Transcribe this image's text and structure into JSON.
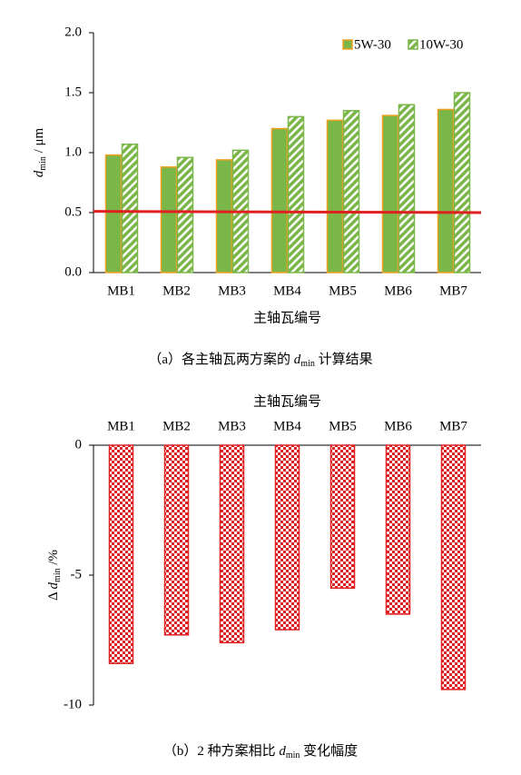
{
  "chart_data": [
    {
      "type": "bar",
      "caption_prefix": "（a）各主轴瓦两方案的 ",
      "caption_symbol": "d",
      "caption_subscript": "min",
      "caption_suffix": " 计算结果",
      "ylabel_symbol": "d",
      "ylabel_subscript": "min",
      "ylabel_unit": " / μm",
      "xlabel": "主轴瓦编号",
      "categories": [
        "MB1",
        "MB2",
        "MB3",
        "MB4",
        "MB5",
        "MB6",
        "MB7"
      ],
      "series": [
        {
          "name": "5W-30",
          "color": "#7ab648",
          "edge_color": "#f0a020",
          "values": [
            0.98,
            0.88,
            0.94,
            1.2,
            1.27,
            1.31,
            1.36
          ]
        },
        {
          "name": "10W-30",
          "color": "#7ab648",
          "edge_color": "#7ab648",
          "hatch": true,
          "values": [
            1.07,
            0.96,
            1.02,
            1.3,
            1.35,
            1.4,
            1.5
          ]
        }
      ],
      "reference_line": {
        "color": "#e02020",
        "values": [
          0.51,
          0.5
        ]
      },
      "ylim": [
        0,
        2
      ],
      "yticks": [
        {
          "value": 0,
          "label": "0.0"
        },
        {
          "value": 0.5,
          "label": "0.5"
        },
        {
          "value": 1,
          "label": "1.0"
        },
        {
          "value": 1.5,
          "label": "1.5"
        },
        {
          "value": 2,
          "label": "2.0"
        }
      ],
      "legend": "top-right"
    },
    {
      "type": "bar-down",
      "caption_prefix": "（b）2 种方案相比 ",
      "caption_symbol": "d",
      "caption_subscript": "min",
      "caption_suffix": " 变化幅度",
      "ylabel_prefix": "Δ ",
      "ylabel_symbol": "d",
      "ylabel_subscript": "min",
      "ylabel_unit": "  /%",
      "xlabel": "主轴瓦编号",
      "categories": [
        "MB1",
        "MB2",
        "MB3",
        "MB4",
        "MB5",
        "MB6",
        "MB7"
      ],
      "values": [
        -8.4,
        -7.3,
        -7.6,
        -7.1,
        -5.5,
        -6.5,
        -9.4
      ],
      "color": "#e02020",
      "ylim": [
        -10,
        0
      ],
      "yticks": [
        -10,
        -5,
        0
      ]
    }
  ]
}
